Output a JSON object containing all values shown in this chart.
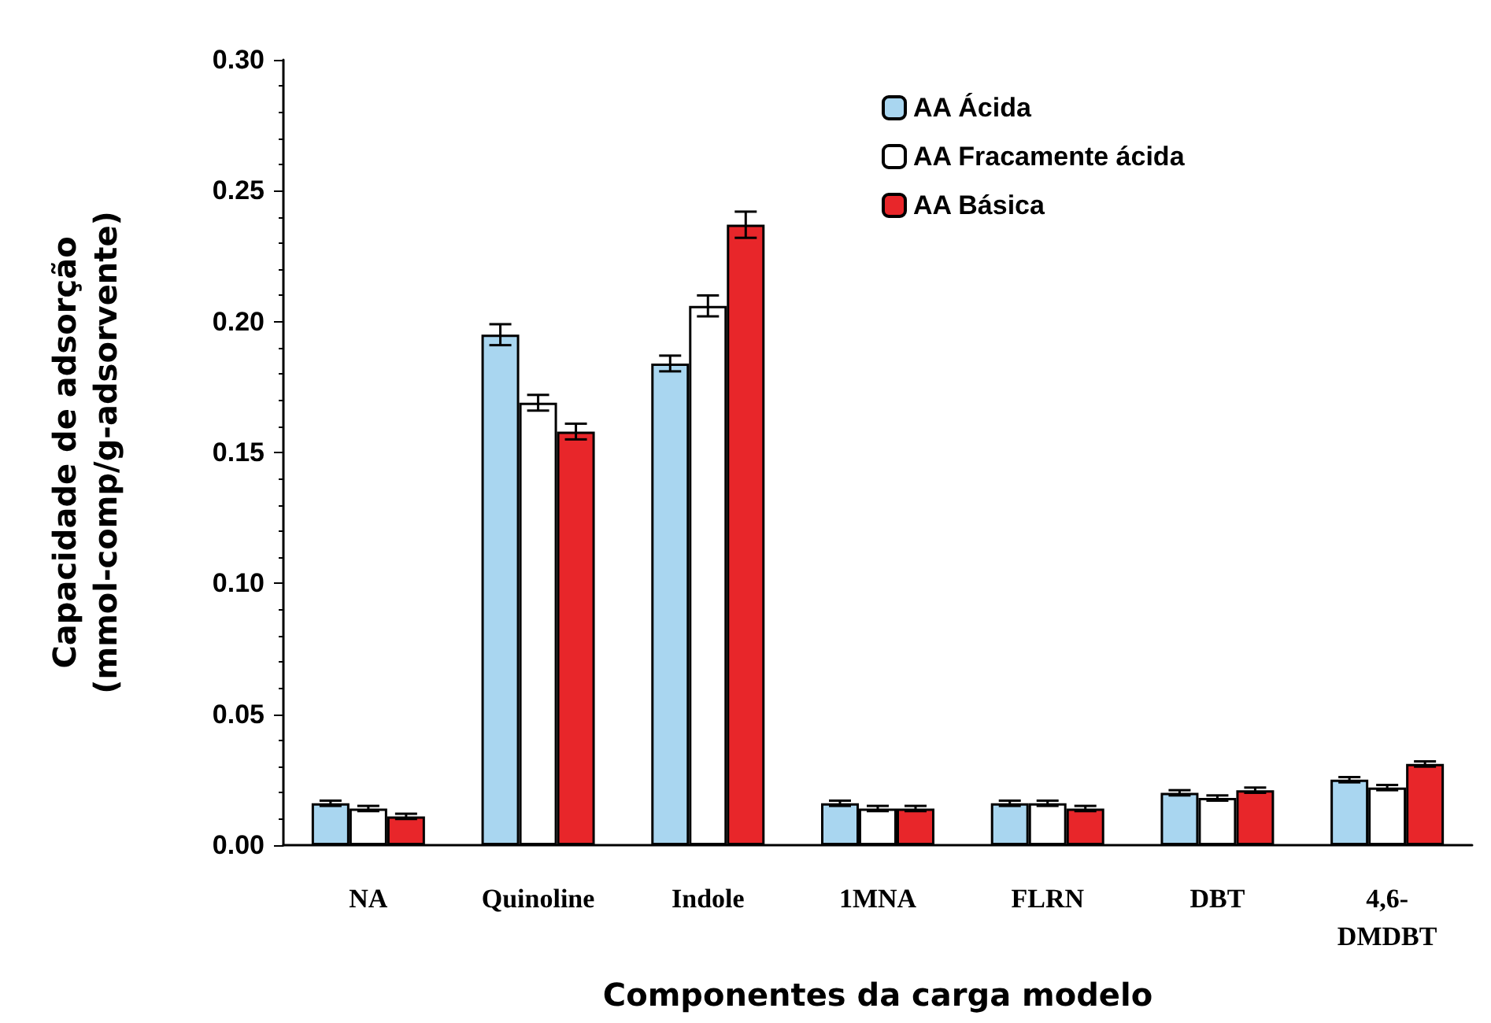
{
  "chart_data": {
    "type": "bar",
    "xlabel": "Componentes da carga modelo",
    "ylabel": "Capacidade de adsorção\n(mmol-comp/g-adsorvente)",
    "categories": [
      "NA",
      "Quinoline",
      "Indole",
      "1MNA",
      "FLRN",
      "DBT",
      "4,6-\nDMDBT"
    ],
    "series": [
      {
        "name": "AA Ácida",
        "color": "#a9d6f0",
        "values": [
          0.016,
          0.195,
          0.184,
          0.016,
          0.016,
          0.02,
          0.025
        ],
        "errors": [
          0.001,
          0.004,
          0.003,
          0.001,
          0.001,
          0.001,
          0.001
        ]
      },
      {
        "name": "AA Fracamente ácida",
        "color": "#ffffff",
        "values": [
          0.014,
          0.169,
          0.206,
          0.014,
          0.016,
          0.018,
          0.022
        ],
        "errors": [
          0.001,
          0.003,
          0.004,
          0.001,
          0.001,
          0.001,
          0.001
        ]
      },
      {
        "name": "AA Básica",
        "color": "#e8262a",
        "values": [
          0.011,
          0.158,
          0.237,
          0.014,
          0.014,
          0.021,
          0.031
        ],
        "errors": [
          0.001,
          0.003,
          0.005,
          0.001,
          0.001,
          0.001,
          0.001
        ]
      }
    ],
    "ylim": [
      0,
      0.3
    ],
    "yticks": [
      {
        "value": 0,
        "label": "0.00"
      },
      {
        "value": 0.05,
        "label": "0.05"
      },
      {
        "value": 0.1,
        "label": "0.10"
      },
      {
        "value": 0.15,
        "label": "0.15"
      },
      {
        "value": 0.2,
        "label": "0.20"
      },
      {
        "value": 0.25,
        "label": "0.25"
      },
      {
        "value": 0.3,
        "label": "0.30"
      }
    ],
    "grid": false,
    "legend": "top right"
  }
}
